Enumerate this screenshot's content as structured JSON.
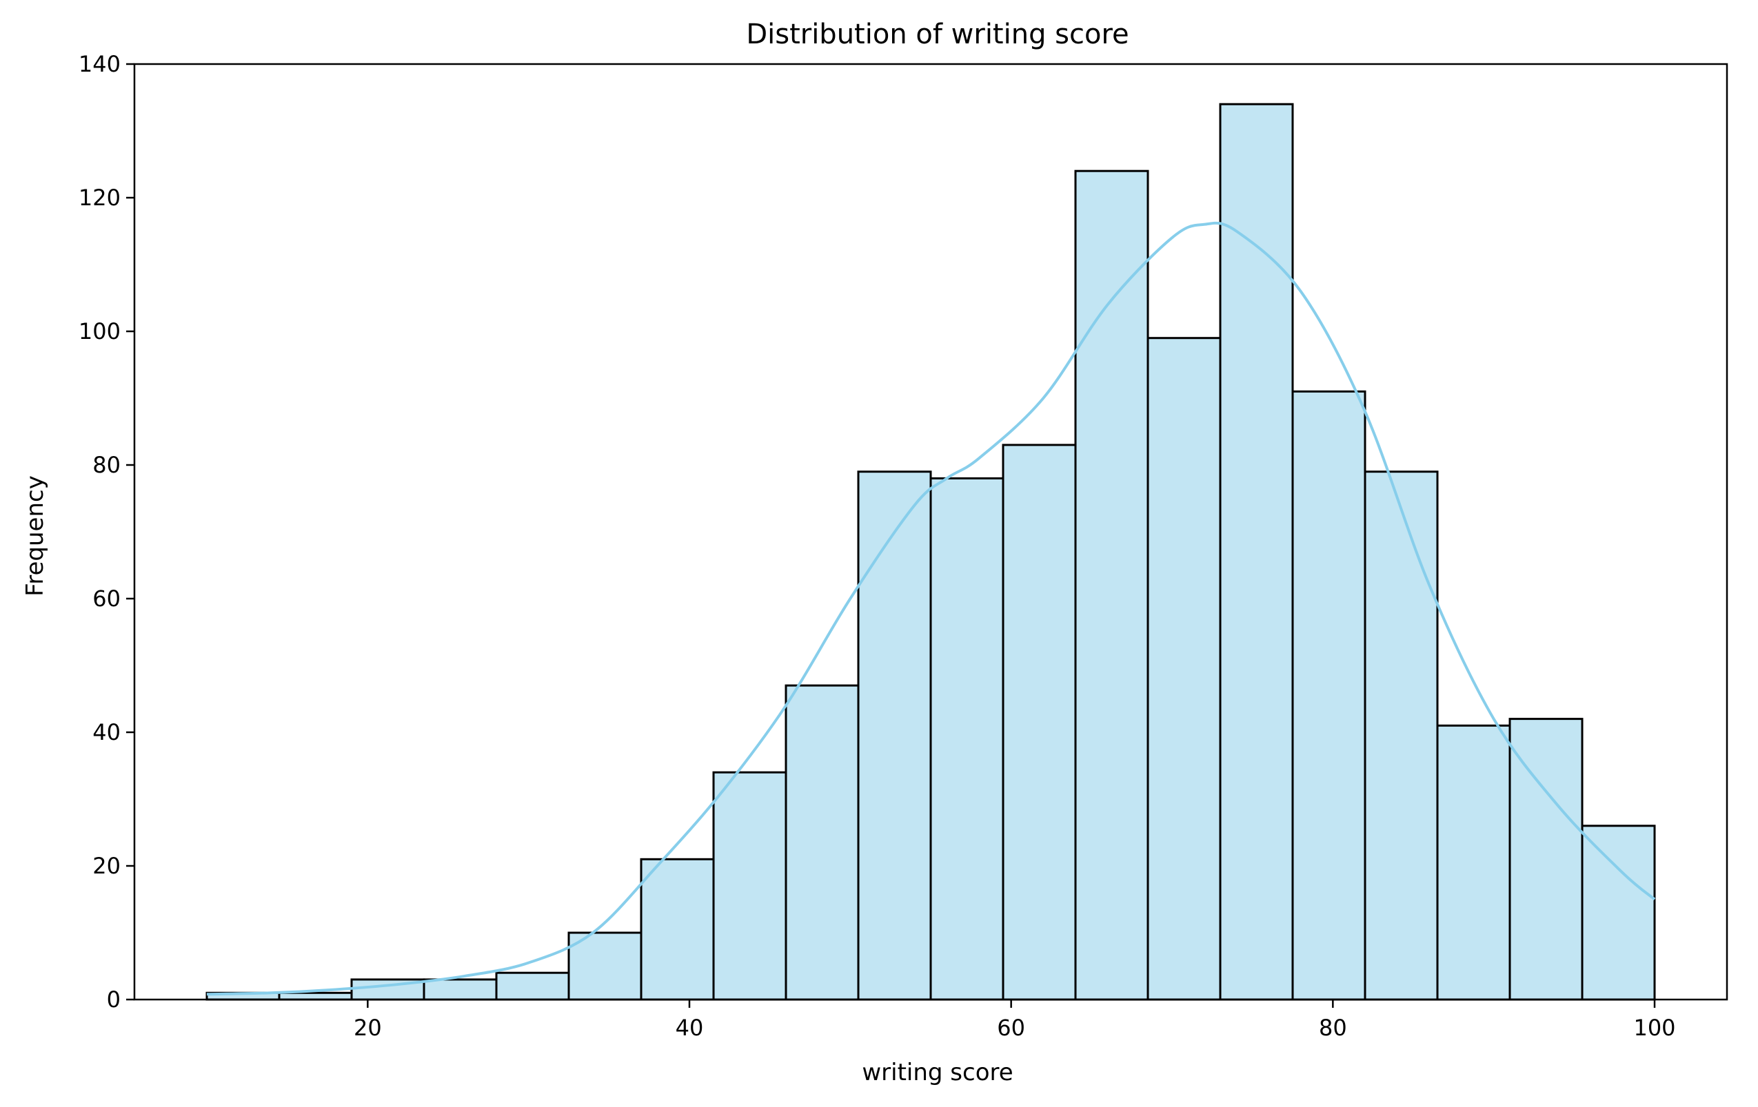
{
  "chart_data": {
    "type": "bar",
    "title": "Distribution of writing score",
    "xlabel": "writing score",
    "ylabel": "Frequency",
    "xlim": [
      5.5,
      104.5
    ],
    "ylim": [
      0,
      140
    ],
    "xticks": [
      20,
      40,
      60,
      80,
      100
    ],
    "yticks": [
      0,
      20,
      40,
      60,
      80,
      100,
      120,
      140
    ],
    "grid": false,
    "bins": [
      {
        "x0": 10.0,
        "x1": 14.5,
        "value": 1
      },
      {
        "x0": 14.5,
        "x1": 19.0,
        "value": 1
      },
      {
        "x0": 19.0,
        "x1": 23.5,
        "value": 3
      },
      {
        "x0": 23.5,
        "x1": 28.0,
        "value": 3
      },
      {
        "x0": 28.0,
        "x1": 32.5,
        "value": 4
      },
      {
        "x0": 32.5,
        "x1": 37.0,
        "value": 10
      },
      {
        "x0": 37.0,
        "x1": 41.5,
        "value": 21
      },
      {
        "x0": 41.5,
        "x1": 46.0,
        "value": 34
      },
      {
        "x0": 46.0,
        "x1": 50.5,
        "value": 47
      },
      {
        "x0": 50.5,
        "x1": 55.0,
        "value": 79
      },
      {
        "x0": 55.0,
        "x1": 59.5,
        "value": 78
      },
      {
        "x0": 59.5,
        "x1": 64.0,
        "value": 83
      },
      {
        "x0": 64.0,
        "x1": 68.5,
        "value": 124
      },
      {
        "x0": 68.5,
        "x1": 73.0,
        "value": 99
      },
      {
        "x0": 73.0,
        "x1": 77.5,
        "value": 134
      },
      {
        "x0": 77.5,
        "x1": 82.0,
        "value": 91
      },
      {
        "x0": 82.0,
        "x1": 86.5,
        "value": 79
      },
      {
        "x0": 86.5,
        "x1": 91.0,
        "value": 41
      },
      {
        "x0": 91.0,
        "x1": 95.5,
        "value": 42
      },
      {
        "x0": 95.5,
        "x1": 100.0,
        "value": 26
      }
    ],
    "kde": {
      "x": [
        10,
        14,
        18,
        22,
        26,
        30,
        34,
        38,
        42,
        46,
        50,
        54,
        56,
        58,
        62,
        66,
        70,
        72,
        74,
        78,
        82,
        86,
        90,
        94,
        98,
        100
      ],
      "y": [
        0.8,
        1.0,
        1.5,
        2.3,
        3.5,
        5.5,
        10,
        20,
        31,
        44,
        60,
        74,
        78,
        81,
        90,
        104,
        114,
        116,
        115,
        106,
        88,
        62,
        42,
        29,
        19,
        15
      ]
    },
    "colors": {
      "bar_fill": "#c2e5f3",
      "bar_edge": "#000000",
      "kde_line": "#87ceeb"
    }
  }
}
